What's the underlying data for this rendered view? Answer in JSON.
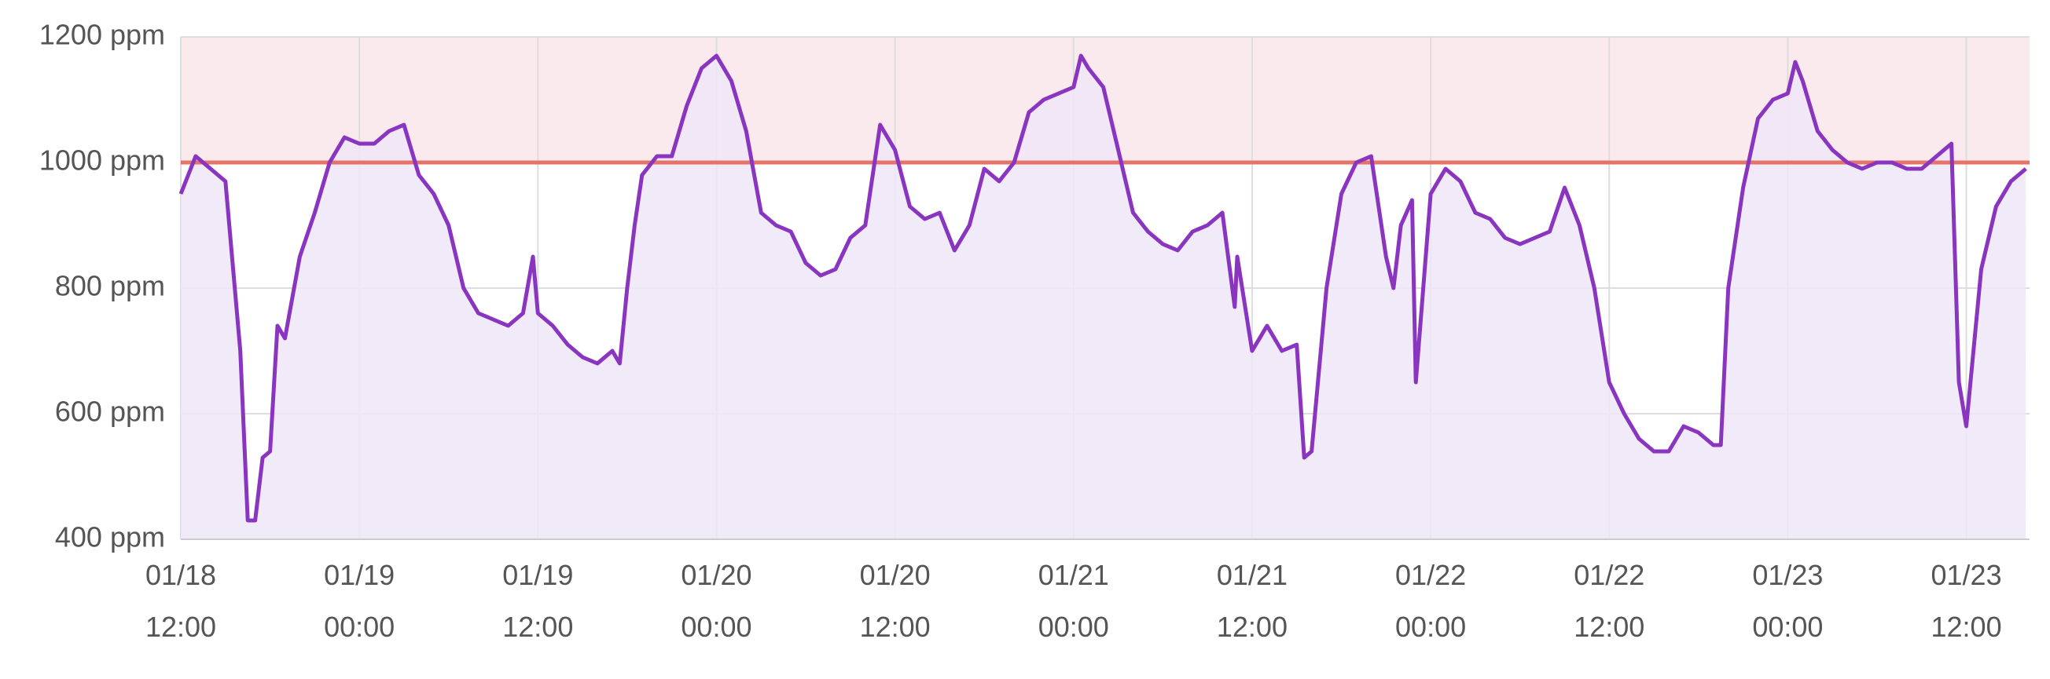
{
  "chart_data": {
    "type": "area",
    "color": "#8a35c0",
    "fill_color": "#efe6f7",
    "threshold": 1000,
    "threshold_color": "#e57368",
    "threshold_band_color": "#fbeaed",
    "grid": true,
    "ylim": [
      400,
      1200
    ],
    "yticks": [
      {
        "value": 400,
        "label": "400 ppm"
      },
      {
        "value": 600,
        "label": "600 ppm"
      },
      {
        "value": 800,
        "label": "800 ppm"
      },
      {
        "value": 1000,
        "label": "1000 ppm"
      },
      {
        "value": 1200,
        "label": "1200 ppm"
      }
    ],
    "xlim": [
      "01/18 12:00",
      "01/23 16:15"
    ],
    "xticks": [
      "01/18 12:00",
      "01/19 00:00",
      "01/19 12:00",
      "01/20 00:00",
      "01/20 12:00",
      "01/21 00:00",
      "01/21 12:00",
      "01/22 00:00",
      "01/22 12:00",
      "01/23 00:00",
      "01/23 12:00"
    ],
    "x": [
      "01/18 12:00",
      "01/18 13:00",
      "01/18 14:00",
      "01/18 15:00",
      "01/18 16:00",
      "01/18 16:30",
      "01/18 17:00",
      "01/18 17:30",
      "01/18 18:00",
      "01/18 18:30",
      "01/18 19:00",
      "01/18 20:00",
      "01/18 21:00",
      "01/18 22:00",
      "01/18 23:00",
      "01/19 00:00",
      "01/19 01:00",
      "01/19 02:00",
      "01/19 03:00",
      "01/19 04:00",
      "01/19 05:00",
      "01/19 06:00",
      "01/19 07:00",
      "01/19 08:00",
      "01/19 09:00",
      "01/19 10:00",
      "01/19 11:00",
      "01/19 11:40",
      "01/19 12:00",
      "01/19 13:00",
      "01/19 14:00",
      "01/19 15:00",
      "01/19 16:00",
      "01/19 17:00",
      "01/19 17:30",
      "01/19 18:00",
      "01/19 18:30",
      "01/19 19:00",
      "01/19 20:00",
      "01/19 21:00",
      "01/19 22:00",
      "01/19 23:00",
      "01/20 00:00",
      "01/20 01:00",
      "01/20 02:00",
      "01/20 03:00",
      "01/20 04:00",
      "01/20 05:00",
      "01/20 06:00",
      "01/20 07:00",
      "01/20 08:00",
      "01/20 09:00",
      "01/20 10:00",
      "01/20 11:00",
      "01/20 12:00",
      "01/20 13:00",
      "01/20 14:00",
      "01/20 15:00",
      "01/20 16:00",
      "01/20 17:00",
      "01/20 18:00",
      "01/20 19:00",
      "01/20 20:00",
      "01/20 21:00",
      "01/20 22:00",
      "01/20 23:00",
      "01/21 00:00",
      "01/21 00:30",
      "01/21 01:00",
      "01/21 02:00",
      "01/21 03:00",
      "01/21 04:00",
      "01/21 05:00",
      "01/21 06:00",
      "01/21 07:00",
      "01/21 08:00",
      "01/21 09:00",
      "01/21 10:00",
      "01/21 10:50",
      "01/21 11:00",
      "01/21 12:00",
      "01/21 13:00",
      "01/21 14:00",
      "01/21 15:00",
      "01/21 15:30",
      "01/21 16:00",
      "01/21 17:00",
      "01/21 18:00",
      "01/21 19:00",
      "01/21 20:00",
      "01/21 21:00",
      "01/21 21:30",
      "01/21 22:00",
      "01/21 22:45",
      "01/21 23:00",
      "01/22 00:00",
      "01/22 01:00",
      "01/22 02:00",
      "01/22 03:00",
      "01/22 04:00",
      "01/22 05:00",
      "01/22 06:00",
      "01/22 07:00",
      "01/22 08:00",
      "01/22 09:00",
      "01/22 10:00",
      "01/22 11:00",
      "01/22 12:00",
      "01/22 13:00",
      "01/22 14:00",
      "01/22 15:00",
      "01/22 16:00",
      "01/22 17:00",
      "01/22 18:00",
      "01/22 19:00",
      "01/22 19:30",
      "01/22 20:00",
      "01/22 21:00",
      "01/22 22:00",
      "01/22 23:00",
      "01/23 00:00",
      "01/23 00:30",
      "01/23 01:00",
      "01/23 02:00",
      "01/23 03:00",
      "01/23 04:00",
      "01/23 05:00",
      "01/23 06:00",
      "01/23 07:00",
      "01/23 08:00",
      "01/23 09:00",
      "01/23 10:00",
      "01/23 11:00",
      "01/23 11:30",
      "01/23 12:00",
      "01/23 13:00",
      "01/23 14:00",
      "01/23 15:00",
      "01/23 16:00"
    ],
    "values": [
      950,
      1010,
      990,
      970,
      700,
      430,
      430,
      530,
      540,
      740,
      720,
      850,
      920,
      1000,
      1040,
      1030,
      1030,
      1050,
      1060,
      980,
      950,
      900,
      800,
      760,
      750,
      740,
      760,
      850,
      760,
      740,
      710,
      690,
      680,
      700,
      680,
      800,
      900,
      980,
      1010,
      1010,
      1090,
      1150,
      1170,
      1130,
      1050,
      920,
      900,
      890,
      840,
      820,
      830,
      880,
      900,
      1060,
      1020,
      930,
      910,
      920,
      860,
      900,
      990,
      970,
      1000,
      1080,
      1100,
      1110,
      1120,
      1170,
      1150,
      1120,
      1020,
      920,
      890,
      870,
      860,
      890,
      900,
      920,
      770,
      850,
      700,
      740,
      700,
      710,
      530,
      540,
      800,
      950,
      1000,
      1010,
      850,
      800,
      900,
      940,
      650,
      950,
      990,
      970,
      920,
      910,
      880,
      870,
      880,
      890,
      960,
      900,
      800,
      650,
      600,
      560,
      540,
      540,
      580,
      570,
      550,
      550,
      800,
      960,
      1070,
      1100,
      1110,
      1160,
      1130,
      1050,
      1020,
      1000,
      990,
      1000,
      1000,
      990,
      990,
      1010,
      1030,
      650,
      580,
      830,
      930,
      970,
      990
    ]
  }
}
